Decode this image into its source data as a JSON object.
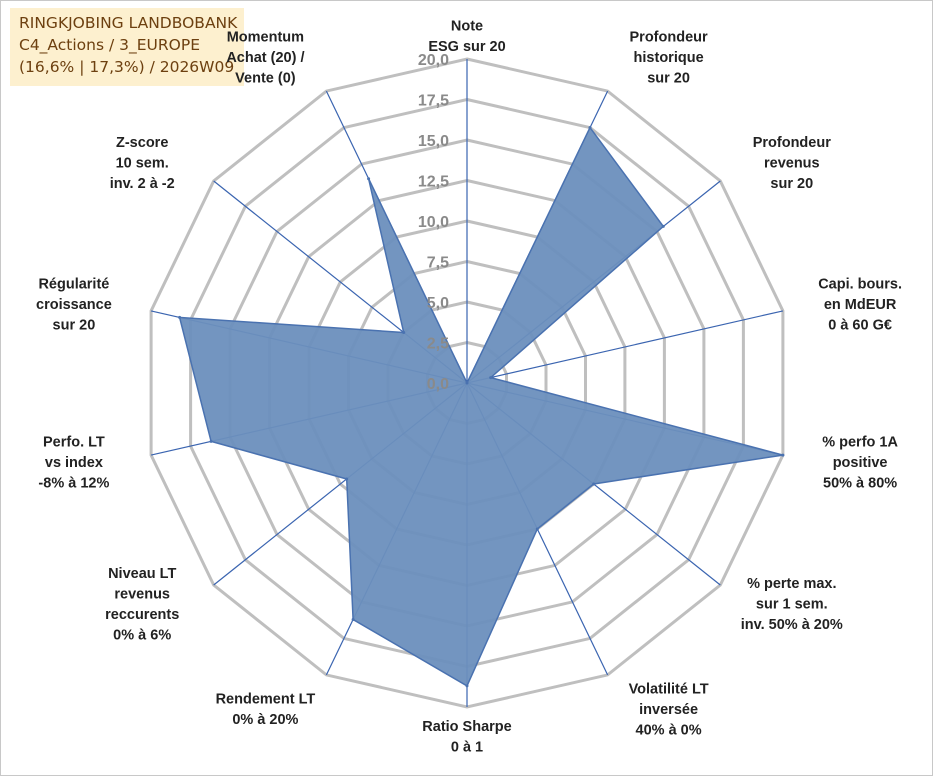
{
  "title_box": {
    "line1": "RINGKJOBING LANDBOBANK",
    "line2": "C4_Actions / 3_EUROPE",
    "line3": "(16,6% | 17,3%) / 2026W09"
  },
  "colors": {
    "fill": "#6b8fbd",
    "stroke": "#4a72b0",
    "grid": "#bfbfbf",
    "axis": "#3a64b0",
    "title_bg": "#fdf0cf",
    "title_text": "#6d4010"
  },
  "chart_data": {
    "type": "radar",
    "rmax": 20,
    "ticks": [
      "0,0",
      "2,5",
      "5,0",
      "7,5",
      "10,0",
      "12,5",
      "15,0",
      "17,5",
      "20,0"
    ],
    "grid": true,
    "axes": [
      {
        "label": [
          "Note",
          "ESG sur 20"
        ],
        "value": 0
      },
      {
        "label": [
          "Profondeur",
          "historique",
          "sur 20"
        ],
        "value": 17.5
      },
      {
        "label": [
          "Profondeur",
          "revenus",
          "sur 20"
        ],
        "value": 15.5
      },
      {
        "label": [
          "Capi. bours.",
          "en MdEUR",
          "0 à 60 G€"
        ],
        "value": 1.5
      },
      {
        "label": [
          "% perfo 1A",
          "positive",
          "50% à 80%"
        ],
        "value": 20
      },
      {
        "label": [
          "% perte max.",
          "sur 1 sem.",
          "inv. 50% à 20%"
        ],
        "value": 10
      },
      {
        "label": [
          "Volatilité LT",
          "inversée",
          "40% à 0%"
        ],
        "value": 10
      },
      {
        "label": [
          "Ratio Sharpe",
          "0 à 1"
        ],
        "value": 18.7
      },
      {
        "label": [
          "Rendement LT",
          "0% à 20%"
        ],
        "value": 16.2
      },
      {
        "label": [
          "Niveau LT",
          "revenus",
          "reccurents",
          "0% à 6%"
        ],
        "value": 9.5
      },
      {
        "label": [
          "Perfo. LT",
          "vs index",
          "-8% à 12%"
        ],
        "value": 16.2
      },
      {
        "label": [
          "Régularité",
          "croissance",
          "sur 20"
        ],
        "value": 18.2
      },
      {
        "label": [
          "Z-score",
          "10 sem.",
          "inv. 2 à -2"
        ],
        "value": 5
      },
      {
        "label": [
          "Momentum",
          "Achat (20) /",
          "Vente (0)"
        ],
        "value": 14
      }
    ]
  }
}
